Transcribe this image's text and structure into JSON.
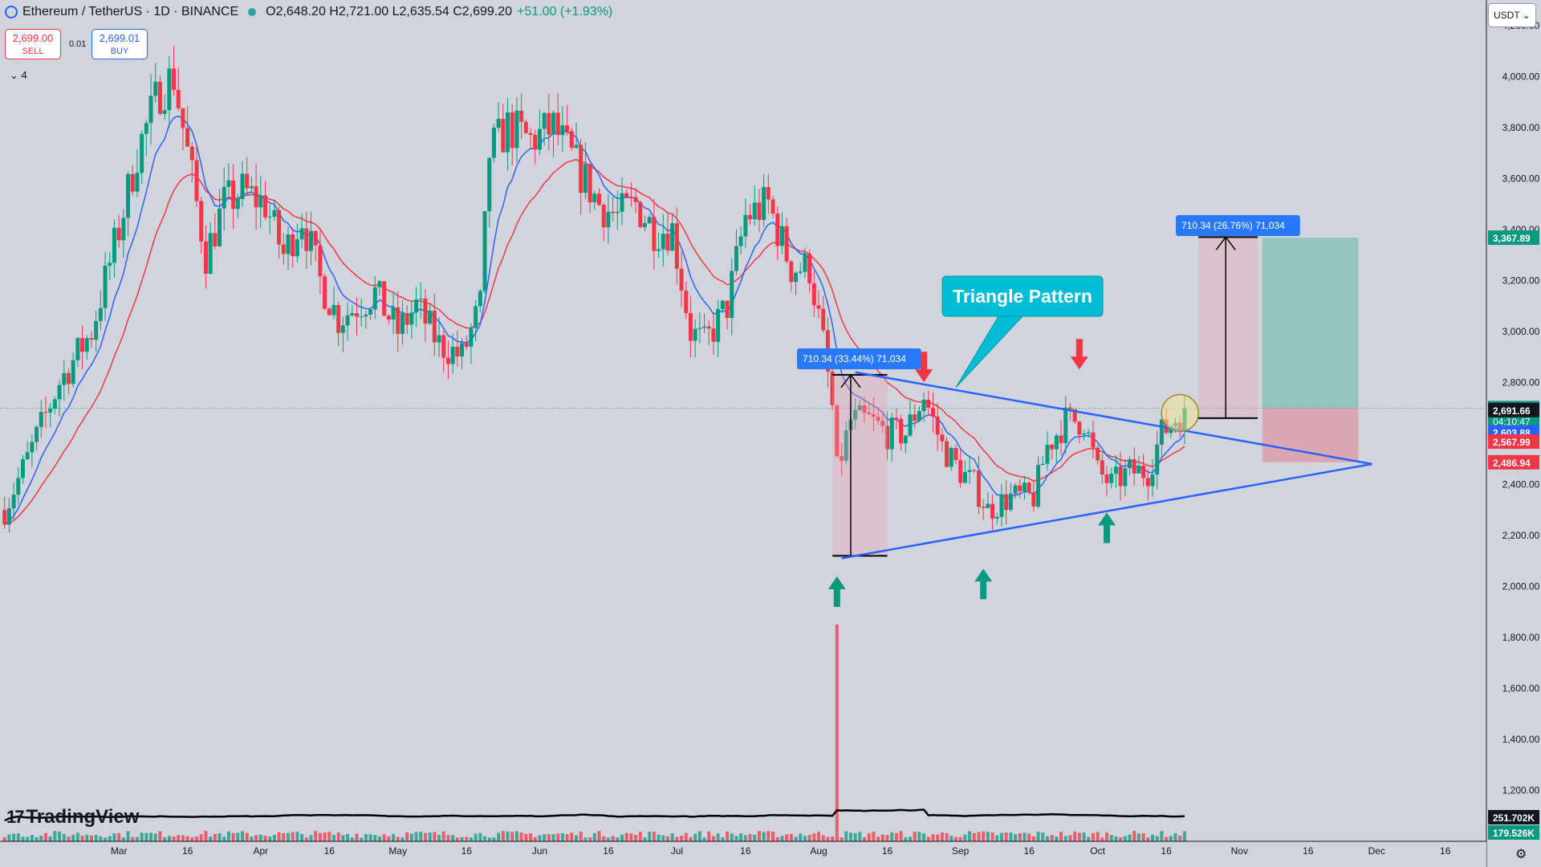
{
  "header": {
    "symbol": "Ethereum / TetherUS · 1D · BINANCE",
    "ohlc": "O2,648.20 H2,721.00 L2,635.54 C2,699.20",
    "change": "+51.00 (+1.93%)"
  },
  "trade": {
    "sell_price": "2,699.00",
    "sell_label": "SELL",
    "buy_price": "2,699.01",
    "buy_label": "BUY",
    "spread": "0.01"
  },
  "indicators": {
    "label": "4"
  },
  "currency": {
    "label": "USDT"
  },
  "branding": {
    "logo_text": "TradingView"
  },
  "colors": {
    "up": "#089981",
    "down": "#f23645",
    "ema_fast": "#2962ff",
    "ema_slow": "#f23645",
    "trend": "#2962ff",
    "annotation": "#00bcd4",
    "bg": "#d1d4dc"
  },
  "chart_data": {
    "type": "candlestick",
    "symbol": "ETHUSDT",
    "interval": "1D",
    "ylim": [
      1000,
      4300
    ],
    "y_ticks": [
      4200,
      4000,
      3800,
      3600,
      3400,
      3200,
      3000,
      2800,
      2600,
      2400,
      2200,
      2000,
      1800,
      1600,
      1400,
      1200
    ],
    "y_tick_labels": [
      "4,200.00",
      "4,000.00",
      "3,800.00",
      "3,600.00",
      "3,400.00",
      "3,200.00",
      "3,000.00",
      "2,800.00",
      "2,600.00",
      "2,400.00",
      "2,200.00",
      "2,000.00",
      "1,800.00",
      "1,600.00",
      "1,400.00",
      "1,200.00"
    ],
    "x_ticks": [
      {
        "label": "Mar",
        "t": "2024-03-01"
      },
      {
        "label": "16",
        "t": "2024-03-16"
      },
      {
        "label": "Apr",
        "t": "2024-04-01"
      },
      {
        "label": "16",
        "t": "2024-04-16"
      },
      {
        "label": "May",
        "t": "2024-05-01"
      },
      {
        "label": "16",
        "t": "2024-05-16"
      },
      {
        "label": "Jun",
        "t": "2024-06-01"
      },
      {
        "label": "16",
        "t": "2024-06-16"
      },
      {
        "label": "Jul",
        "t": "2024-07-01"
      },
      {
        "label": "16",
        "t": "2024-07-16"
      },
      {
        "label": "Aug",
        "t": "2024-08-01"
      },
      {
        "label": "16",
        "t": "2024-08-16"
      },
      {
        "label": "Sep",
        "t": "2024-09-01"
      },
      {
        "label": "16",
        "t": "2024-09-16"
      },
      {
        "label": "Oct",
        "t": "2024-10-01"
      },
      {
        "label": "16",
        "t": "2024-10-16"
      },
      {
        "label": "Nov",
        "t": "2024-11-01"
      },
      {
        "label": "16",
        "t": "2024-11-16"
      },
      {
        "label": "Dec",
        "t": "2024-12-01"
      },
      {
        "label": "16",
        "t": "2024-12-16"
      }
    ],
    "x_start": "2024-02-04",
    "x_end": "2024-12-25",
    "close_anchors": [
      {
        "t": "2024-02-05",
        "v": 2300
      },
      {
        "t": "2024-02-10",
        "v": 2500
      },
      {
        "t": "2024-02-17",
        "v": 2800
      },
      {
        "t": "2024-02-24",
        "v": 3000
      },
      {
        "t": "2024-03-01",
        "v": 3400
      },
      {
        "t": "2024-03-05",
        "v": 3700
      },
      {
        "t": "2024-03-10",
        "v": 3950
      },
      {
        "t": "2024-03-13",
        "v": 4000
      },
      {
        "t": "2024-03-17",
        "v": 3600
      },
      {
        "t": "2024-03-20",
        "v": 3300
      },
      {
        "t": "2024-03-24",
        "v": 3500
      },
      {
        "t": "2024-03-28",
        "v": 3550
      },
      {
        "t": "2024-04-02",
        "v": 3500
      },
      {
        "t": "2024-04-06",
        "v": 3300
      },
      {
        "t": "2024-04-10",
        "v": 3450
      },
      {
        "t": "2024-04-14",
        "v": 3200
      },
      {
        "t": "2024-04-18",
        "v": 3050
      },
      {
        "t": "2024-04-22",
        "v": 3100
      },
      {
        "t": "2024-04-26",
        "v": 3150
      },
      {
        "t": "2024-05-01",
        "v": 3000
      },
      {
        "t": "2024-05-05",
        "v": 3100
      },
      {
        "t": "2024-05-10",
        "v": 2950
      },
      {
        "t": "2024-05-15",
        "v": 2900
      },
      {
        "t": "2024-05-19",
        "v": 3100
      },
      {
        "t": "2024-05-21",
        "v": 3700
      },
      {
        "t": "2024-05-25",
        "v": 3800
      },
      {
        "t": "2024-05-30",
        "v": 3750
      },
      {
        "t": "2024-06-04",
        "v": 3800
      },
      {
        "t": "2024-06-09",
        "v": 3650
      },
      {
        "t": "2024-06-14",
        "v": 3500
      },
      {
        "t": "2024-06-18",
        "v": 3450
      },
      {
        "t": "2024-06-22",
        "v": 3500
      },
      {
        "t": "2024-06-26",
        "v": 3400
      },
      {
        "t": "2024-06-30",
        "v": 3400
      },
      {
        "t": "2024-07-04",
        "v": 3000
      },
      {
        "t": "2024-07-07",
        "v": 2950
      },
      {
        "t": "2024-07-12",
        "v": 3100
      },
      {
        "t": "2024-07-16",
        "v": 3450
      },
      {
        "t": "2024-07-21",
        "v": 3500
      },
      {
        "t": "2024-07-26",
        "v": 3250
      },
      {
        "t": "2024-07-30",
        "v": 3250
      },
      {
        "t": "2024-08-02",
        "v": 2950
      },
      {
        "t": "2024-08-04",
        "v": 2700
      },
      {
        "t": "2024-08-05",
        "v": 2450
      },
      {
        "t": "2024-08-08",
        "v": 2650
      },
      {
        "t": "2024-08-12",
        "v": 2650
      },
      {
        "t": "2024-08-16",
        "v": 2600
      },
      {
        "t": "2024-08-20",
        "v": 2600
      },
      {
        "t": "2024-08-24",
        "v": 2750
      },
      {
        "t": "2024-08-28",
        "v": 2550
      },
      {
        "t": "2024-09-01",
        "v": 2450
      },
      {
        "t": "2024-09-04",
        "v": 2400
      },
      {
        "t": "2024-09-07",
        "v": 2300
      },
      {
        "t": "2024-09-12",
        "v": 2350
      },
      {
        "t": "2024-09-17",
        "v": 2350
      },
      {
        "t": "2024-09-20",
        "v": 2550
      },
      {
        "t": "2024-09-24",
        "v": 2650
      },
      {
        "t": "2024-09-28",
        "v": 2650
      },
      {
        "t": "2024-10-01",
        "v": 2450
      },
      {
        "t": "2024-10-04",
        "v": 2400
      },
      {
        "t": "2024-10-08",
        "v": 2450
      },
      {
        "t": "2024-10-12",
        "v": 2450
      },
      {
        "t": "2024-10-15",
        "v": 2600
      },
      {
        "t": "2024-10-20",
        "v": 2699
      }
    ],
    "volume_note": "relative daily volume bars with moving average; spike on 2024-08-05",
    "volume_spike": {
      "t": "2024-08-05",
      "scale": 7.2
    },
    "right_axis_labels": [
      {
        "value": 3367.89,
        "text": "3,367.89",
        "color": "#089981"
      },
      {
        "value": 2699.2,
        "text": "2,699.20",
        "color": "#089981",
        "extra": "04:10:47"
      },
      {
        "value": 2691.66,
        "text": "2,691.66",
        "color": "#131722"
      },
      {
        "value": 2603.88,
        "text": "2,603.88",
        "color": "#2962ff"
      },
      {
        "value": 2567.99,
        "text": "2,567.99",
        "color": "#f23645"
      },
      {
        "value": 2486.94,
        "text": "2,486.94",
        "color": "#f23645"
      }
    ],
    "volume_labels": [
      {
        "text": "251.702K",
        "color": "#131722"
      },
      {
        "text": "179.526K",
        "color": "#089981"
      }
    ],
    "triangle": {
      "upper": [
        {
          "t": "2024-08-09",
          "v": 2840
        },
        {
          "t": "2024-11-30",
          "v": 2480
        }
      ],
      "lower": [
        {
          "t": "2024-08-06",
          "v": 2110
        },
        {
          "t": "2024-11-30",
          "v": 2480
        }
      ]
    },
    "annotation": {
      "text": "Triangle Pattern",
      "pointer": {
        "t": "2024-08-31",
        "v": 2780
      }
    },
    "measure_left": {
      "text": "710.34 (33.44%) 71,034",
      "t0": "2024-08-04",
      "t1": "2024-08-16",
      "low": 2120,
      "high": 2830,
      "arrow_t": "2024-08-08"
    },
    "measure_right": {
      "text": "710.34 (26.76%) 71,034",
      "t0": "2024-10-23",
      "t1": "2024-11-05",
      "low": 2660,
      "high": 3370,
      "arrow_t": "2024-10-29"
    },
    "position": {
      "t0": "2024-11-06",
      "t1": "2024-11-27",
      "entry": 2699,
      "target": 3367.89,
      "stop": 2486.94
    },
    "arrows_up": [
      {
        "t": "2024-08-05",
        "v": 1970
      },
      {
        "t": "2024-09-06",
        "v": 2000
      },
      {
        "t": "2024-10-03",
        "v": 2220
      }
    ],
    "arrows_down": [
      {
        "t": "2024-08-24",
        "v": 2870
      },
      {
        "t": "2024-09-27",
        "v": 2920
      }
    ],
    "circle": {
      "t": "2024-10-19",
      "v": 2680
    }
  }
}
